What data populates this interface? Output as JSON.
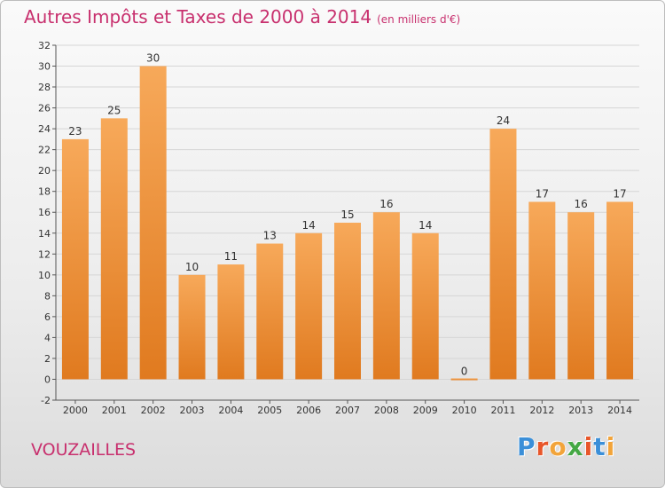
{
  "header": {
    "title": "Autres Impôts et Taxes de 2000 à 2014",
    "subtitle": "(en milliers d'€)"
  },
  "footer": {
    "commune": "VOUZAILLES",
    "logo_text": "Proxiti",
    "logo_colors": [
      "#3b8fd8",
      "#e8562a",
      "#f2a43a",
      "#44a844",
      "#e8562a",
      "#3b8fd8",
      "#f2a43a"
    ]
  },
  "colors": {
    "title": "#c8306e",
    "bar_light": "#f7a95a",
    "bar_dark": "#e07a1f",
    "grid": "#d6d6d6",
    "axis": "#555555"
  },
  "chart_data": {
    "type": "bar",
    "categories": [
      "2000",
      "2001",
      "2002",
      "2003",
      "2004",
      "2005",
      "2006",
      "2007",
      "2008",
      "2009",
      "2010",
      "2011",
      "2012",
      "2013",
      "2014"
    ],
    "values": [
      23,
      25,
      30,
      10,
      11,
      13,
      14,
      15,
      16,
      14,
      0,
      24,
      17,
      16,
      17
    ],
    "data_labels": [
      "23",
      "25",
      "30",
      "10",
      "11",
      "13",
      "14",
      "15",
      "16",
      "14",
      "0",
      "24",
      "17",
      "16",
      "17"
    ],
    "yticks": [
      "-2",
      "0",
      "2",
      "4",
      "6",
      "8",
      "10",
      "12",
      "14",
      "16",
      "18",
      "20",
      "22",
      "24",
      "26",
      "28",
      "30",
      "32"
    ],
    "ylim": [
      -2,
      32
    ],
    "grid": true,
    "legend": "none"
  }
}
